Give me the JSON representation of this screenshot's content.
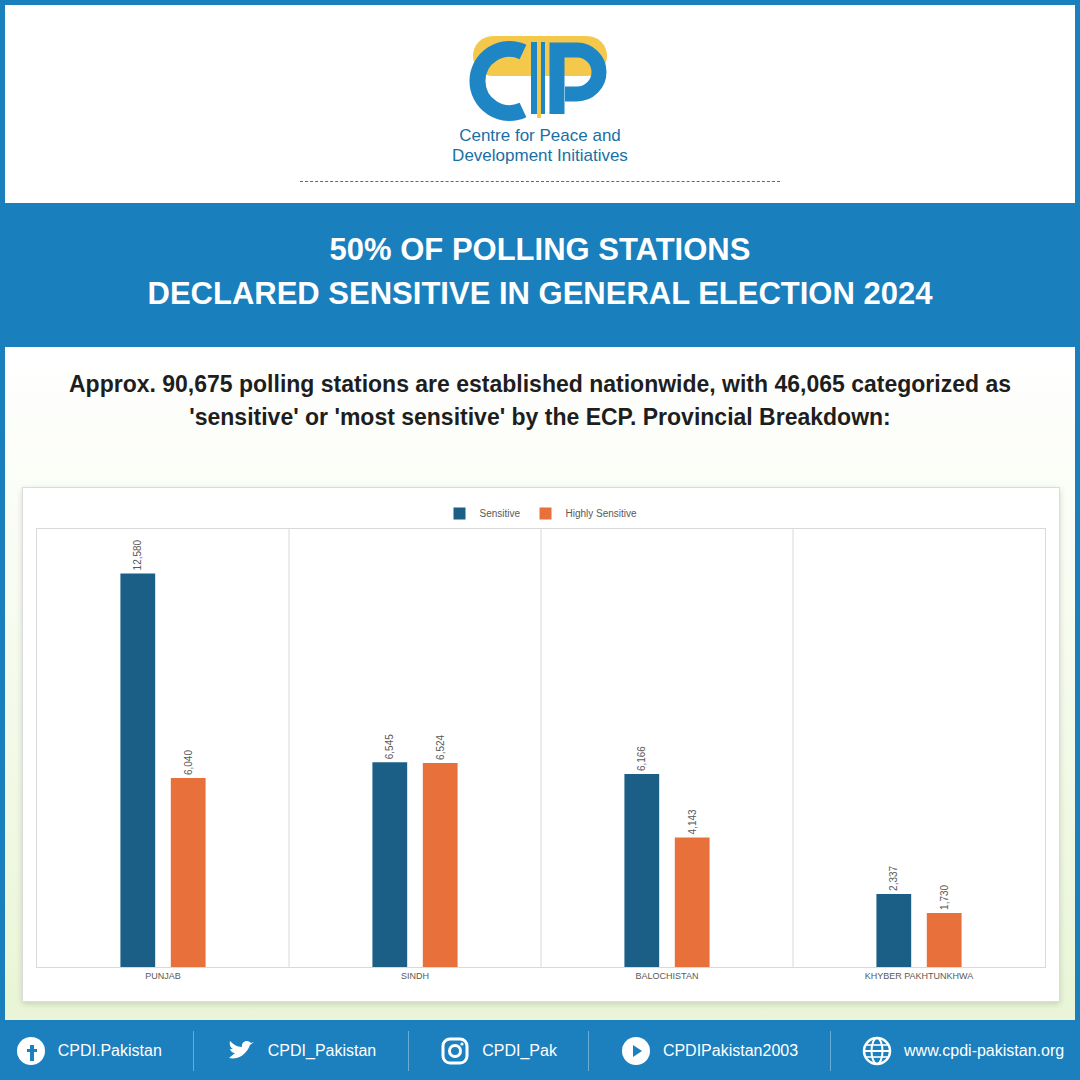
{
  "header": {
    "organization": "Centre for Peace and Development Initiatives"
  },
  "chart_data": {
    "type": "bar",
    "title": "50% OF POLLING STATIONS\nDECLARED SENSITIVE IN GENERAL ELECTION 2024",
    "subtitle": "Approx. 90,675 polling stations are established nationwide, with 46,065 categorized as 'sensitive' or 'most sensitive' by the ECP. Provincial Breakdown:",
    "categories": [
      "PUNJAB",
      "SINDH",
      "BALOCHISTAN",
      "KHYBER PAKHTUNKHWA"
    ],
    "series": [
      {
        "name": "Sensitive",
        "color": "#1b5f86",
        "values": [
          12580,
          6545,
          6166,
          2337
        ],
        "value_labels": [
          "12,580",
          "6,545",
          "6,166",
          "2,337"
        ]
      },
      {
        "name": "Highly Sensitive",
        "color": "#e8703a",
        "values": [
          6040,
          6524,
          4143,
          1730
        ],
        "value_labels": [
          "6,040",
          "6,524",
          "4,143",
          "1,730"
        ]
      }
    ],
    "ylim": [
      0,
      14000
    ],
    "grid": false,
    "legend": "top",
    "data_labels": true,
    "tick_labels": "x"
  },
  "footer": {
    "links": [
      "CPDI.Pakistan",
      "CPDI_Pakistan",
      "CPDI_Pak",
      "CPDIPakistan2003",
      "www.cpdi-pakistan.org"
    ]
  }
}
